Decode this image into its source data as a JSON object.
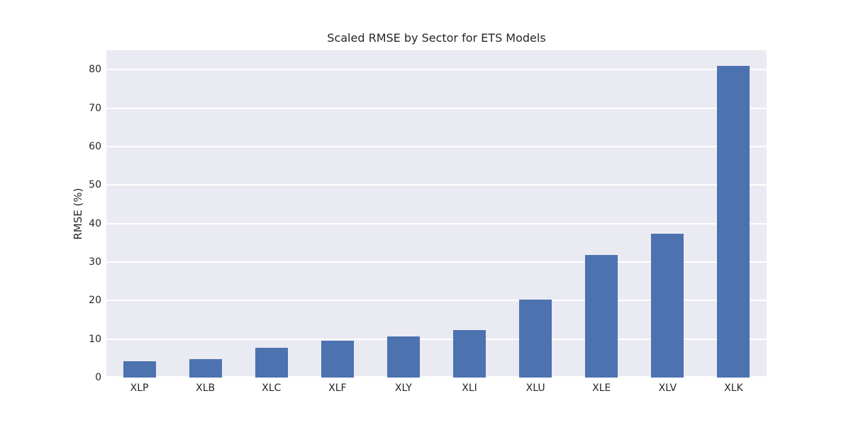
{
  "chart_data": {
    "type": "bar",
    "title": "Scaled RMSE by Sector for ETS Models",
    "xlabel": "",
    "ylabel": "RMSE (%)",
    "categories": [
      "XLP",
      "XLB",
      "XLC",
      "XLF",
      "XLY",
      "XLI",
      "XLU",
      "XLE",
      "XLV",
      "XLK"
    ],
    "values": [
      4.2,
      4.7,
      7.8,
      9.5,
      10.7,
      12.4,
      20.3,
      31.8,
      37.3,
      81.0
    ],
    "ylim": [
      0,
      85
    ],
    "yticks": [
      0,
      10,
      20,
      30,
      40,
      50,
      60,
      70,
      80
    ],
    "grid": true,
    "legend": null,
    "style": {
      "bar_color": "#4c72b0",
      "plot_background": "#eaeaf2",
      "grid_color": "#ffffff",
      "text_color": "#262626"
    }
  }
}
